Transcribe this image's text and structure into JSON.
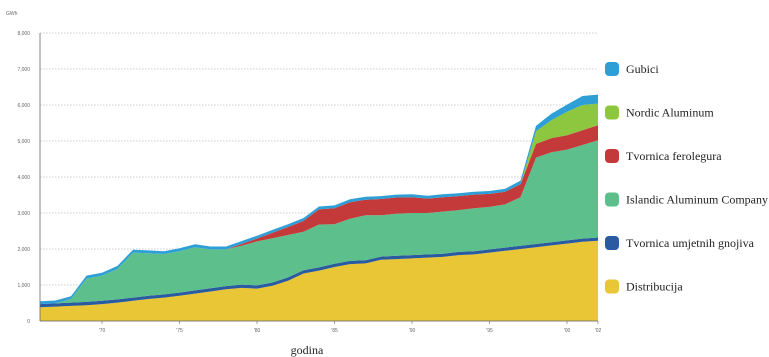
{
  "chart_data": {
    "type": "area",
    "stacked": true,
    "title": "",
    "xlabel": "godina",
    "ylabel": "",
    "y_unit_label": "GWh",
    "x_tick_labels": [
      "'70",
      "'75",
      "'80",
      "'85",
      "'90",
      "'95",
      "'00",
      "'02"
    ],
    "y_tick_labels": [
      "0",
      "1,000",
      "2,000",
      "3,000",
      "4,000",
      "5,000",
      "6,000",
      "7,000",
      "8,000"
    ],
    "ylim": [
      0,
      8000
    ],
    "grid": true,
    "legend_position": "right",
    "x": [
      1966,
      1967,
      1968,
      1969,
      1970,
      1971,
      1972,
      1973,
      1974,
      1975,
      1976,
      1977,
      1978,
      1979,
      1980,
      1981,
      1982,
      1983,
      1984,
      1985,
      1986,
      1987,
      1988,
      1989,
      1990,
      1991,
      1992,
      1993,
      1994,
      1995,
      1996,
      1997,
      1998,
      1999,
      2000,
      2001,
      2002
    ],
    "series": [
      {
        "name": "Distribucija",
        "color": "#e8c635",
        "values": [
          380,
          400,
          420,
          440,
          470,
          510,
          560,
          610,
          650,
          700,
          760,
          820,
          880,
          920,
          900,
          980,
          1120,
          1320,
          1400,
          1500,
          1580,
          1600,
          1700,
          1720,
          1740,
          1760,
          1780,
          1830,
          1850,
          1900,
          1950,
          2000,
          2050,
          2100,
          2150,
          2200,
          2230
        ]
      },
      {
        "name": "Tvornica umjetnih gnojiva",
        "color": "#2a5aa0",
        "values": [
          90,
          90,
          90,
          90,
          90,
          90,
          90,
          90,
          90,
          90,
          90,
          90,
          90,
          90,
          90,
          90,
          90,
          90,
          90,
          90,
          90,
          90,
          90,
          90,
          90,
          90,
          90,
          90,
          90,
          90,
          90,
          90,
          90,
          90,
          90,
          90,
          90
        ]
      },
      {
        "name": "Islandic Aluminum Company",
        "color": "#5cbf8c",
        "values": [
          0,
          0,
          100,
          650,
          700,
          850,
          1250,
          1180,
          1120,
          1150,
          1200,
          1080,
          1020,
          1080,
          1220,
          1230,
          1180,
          1070,
          1190,
          1100,
          1170,
          1250,
          1150,
          1170,
          1170,
          1150,
          1170,
          1160,
          1190,
          1180,
          1200,
          1350,
          2400,
          2500,
          2520,
          2600,
          2700
        ]
      },
      {
        "name": "Tvornica ferolegura",
        "color": "#c43a3a",
        "values": [
          0,
          0,
          0,
          0,
          0,
          0,
          0,
          0,
          0,
          0,
          0,
          0,
          0,
          50,
          80,
          150,
          220,
          300,
          420,
          440,
          460,
          430,
          450,
          450,
          440,
          400,
          400,
          390,
          380,
          360,
          350,
          360,
          380,
          390,
          400,
          410,
          420
        ]
      },
      {
        "name": "Nordic Aluminum",
        "color": "#8dc63f",
        "values": [
          0,
          0,
          0,
          0,
          0,
          0,
          0,
          0,
          0,
          0,
          0,
          0,
          0,
          0,
          0,
          0,
          0,
          0,
          0,
          0,
          0,
          0,
          0,
          0,
          0,
          0,
          0,
          0,
          0,
          0,
          0,
          0,
          350,
          500,
          650,
          700,
          600
        ]
      },
      {
        "name": "Gubici",
        "color": "#2e9fd6",
        "values": [
          80,
          80,
          80,
          80,
          80,
          80,
          80,
          80,
          80,
          80,
          80,
          80,
          80,
          80,
          80,
          80,
          80,
          80,
          80,
          80,
          80,
          80,
          80,
          80,
          80,
          80,
          80,
          80,
          80,
          80,
          80,
          100,
          150,
          180,
          200,
          250,
          250
        ]
      }
    ]
  }
}
